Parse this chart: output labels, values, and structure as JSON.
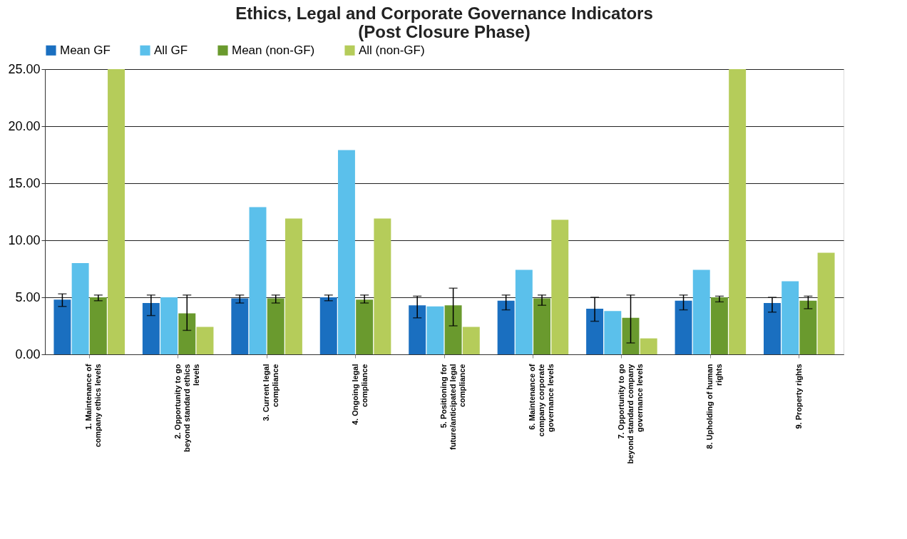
{
  "chart_data": {
    "type": "bar",
    "title": [
      "Ethics, Legal and Corporate Governance Indicators",
      "(Post Closure Phase)"
    ],
    "categories": [
      "1. Maintenance of company ethics levels",
      "2. Opportunity to go beyond standard ethics levels",
      "3. Current legal compliance",
      "4. Ongoing legal compliance",
      "5. Positioning for future/anticipated legal compliance",
      "6. Maintenance of company corporate governance levels",
      "7. Opportunity to go beyond standard company governance levels",
      "8. Upholding of human rights",
      "9. Property rights"
    ],
    "series": [
      {
        "name": "Mean GF",
        "color": "#1a6fc0",
        "values": [
          4.8,
          4.5,
          4.9,
          5.0,
          4.3,
          4.7,
          4.0,
          4.7,
          4.5
        ],
        "errors": [
          [
            4.2,
            5.3
          ],
          [
            3.4,
            5.2
          ],
          [
            4.5,
            5.2
          ],
          [
            4.7,
            5.2
          ],
          [
            3.2,
            5.1
          ],
          [
            3.9,
            5.2
          ],
          [
            2.9,
            5.0
          ],
          [
            3.9,
            5.2
          ],
          [
            3.7,
            5.0
          ]
        ]
      },
      {
        "name": "All GF",
        "color": "#5bc0eb",
        "values": [
          8.0,
          5.0,
          12.9,
          17.9,
          4.2,
          7.4,
          3.8,
          7.4,
          6.4
        ]
      },
      {
        "name": "Mean (non-GF)",
        "color": "#6a9a2e",
        "values": [
          5.0,
          3.6,
          4.9,
          4.8,
          4.3,
          4.9,
          3.2,
          5.0,
          4.7
        ],
        "errors": [
          [
            4.7,
            5.2
          ],
          [
            2.1,
            5.2
          ],
          [
            4.5,
            5.2
          ],
          [
            4.5,
            5.2
          ],
          [
            2.5,
            5.8
          ],
          [
            4.3,
            5.2
          ],
          [
            1.0,
            5.2
          ],
          [
            4.6,
            5.1
          ],
          [
            4.0,
            5.1
          ]
        ]
      },
      {
        "name": "All (non-GF)",
        "color": "#b5cc5a",
        "values": [
          25.0,
          2.4,
          11.9,
          11.9,
          2.4,
          11.8,
          1.4,
          25.0,
          8.9
        ]
      }
    ],
    "ylim": [
      0,
      25
    ],
    "yticks": [
      {
        "value": 0,
        "label": "0.00"
      },
      {
        "value": 5,
        "label": "5.00"
      },
      {
        "value": 10,
        "label": "10.00"
      },
      {
        "value": 15,
        "label": "15.00"
      },
      {
        "value": 20,
        "label": "20.00"
      },
      {
        "value": 25,
        "label": "25.00"
      }
    ],
    "grid": "y",
    "legend": "top"
  }
}
